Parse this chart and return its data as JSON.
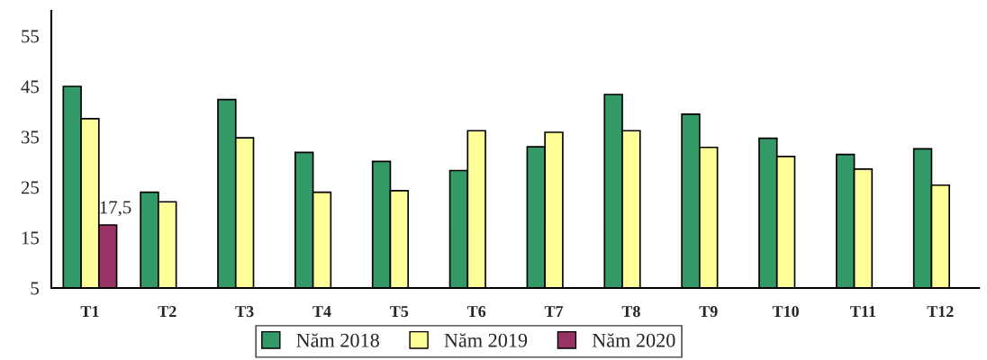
{
  "chart_data": {
    "type": "bar",
    "categories": [
      "T1",
      "T2",
      "T3",
      "T4",
      "T5",
      "T6",
      "T7",
      "T8",
      "T9",
      "T10",
      "T11",
      "T12"
    ],
    "series": [
      {
        "name": "Năm 2018",
        "color": "#339966",
        "values": [
          45,
          24,
          42.4,
          31.9,
          30.1,
          28.3,
          33,
          43.4,
          39.5,
          34.7,
          31.5,
          32.6
        ]
      },
      {
        "name": "Năm 2019",
        "color": "#ffff99",
        "values": [
          38.6,
          22.1,
          34.8,
          24,
          24.3,
          36.2,
          35.9,
          36.2,
          32.9,
          31.1,
          28.6,
          25.4
        ]
      },
      {
        "name": "Năm 2020",
        "color": "#993366",
        "values": [
          17.5,
          null,
          null,
          null,
          null,
          null,
          null,
          null,
          null,
          null,
          null,
          null
        ],
        "value_labels": [
          "17,5",
          null,
          null,
          null,
          null,
          null,
          null,
          null,
          null,
          null,
          null,
          null
        ]
      }
    ],
    "ylim": [
      5,
      60
    ],
    "yticks": [
      5,
      15,
      25,
      35,
      45,
      55
    ],
    "grid": false,
    "legend": "bottom"
  }
}
